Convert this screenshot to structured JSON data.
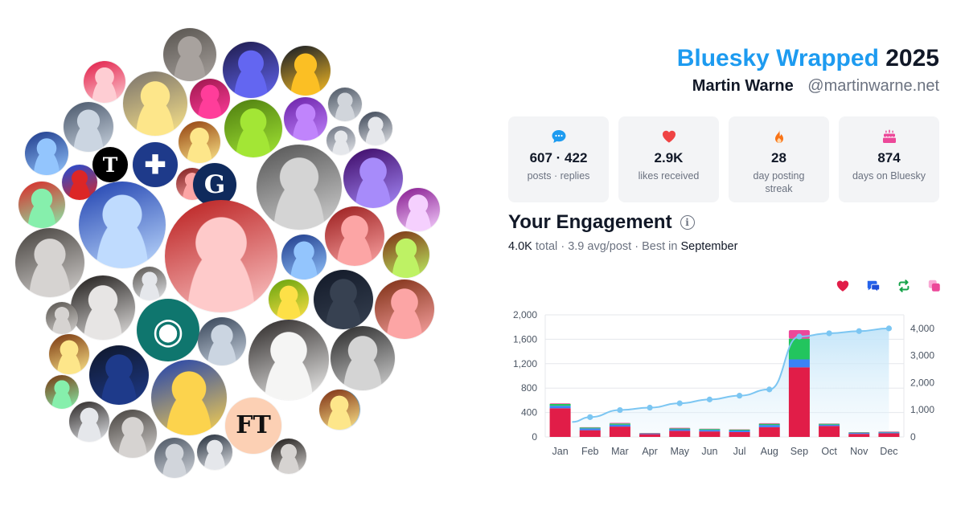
{
  "header": {
    "brand": "Bluesky Wrapped",
    "year": "2025",
    "name": "Martin Warne",
    "handle": "@martinwarne.net"
  },
  "stats": [
    {
      "icon": "chat-bubble-icon",
      "value": "607 · 422",
      "label": "posts · replies",
      "color": "#1d9bf0"
    },
    {
      "icon": "heart-icon",
      "value": "2.9K",
      "label": "likes received",
      "color": "#ef4444"
    },
    {
      "icon": "flame-icon",
      "value": "28",
      "label": "day posting streak",
      "color": "#f97316"
    },
    {
      "icon": "cake-icon",
      "value": "874",
      "label": "days on Bluesky",
      "color": "#ec4899"
    }
  ],
  "engagement": {
    "title": "Your Engagement",
    "total": "4.0K",
    "total_label": "total",
    "avg": "3.9 avg/post",
    "best_prefix": "Best in",
    "best_month": "September"
  },
  "legend": [
    {
      "icon": "heart-icon",
      "color": "#e11d48"
    },
    {
      "icon": "reply-icon",
      "color": "#2563eb"
    },
    {
      "icon": "repost-icon",
      "color": "#16a34a"
    },
    {
      "icon": "quote-icon",
      "color": "#ec4899"
    }
  ],
  "chart_data": {
    "type": "bar",
    "categories": [
      "Jan",
      "Feb",
      "Mar",
      "Apr",
      "May",
      "Jun",
      "Jul",
      "Aug",
      "Sep",
      "Oct",
      "Nov",
      "Dec"
    ],
    "series": [
      {
        "values": [
          470,
          110,
          170,
          45,
          100,
          90,
          80,
          160,
          1140,
          180,
          50,
          60
        ],
        "color": "#e11d48"
      },
      {
        "values": [
          40,
          30,
          30,
          10,
          25,
          25,
          25,
          35,
          130,
          20,
          15,
          15
        ],
        "color": "#3b82f6"
      },
      {
        "values": [
          30,
          15,
          20,
          5,
          15,
          15,
          15,
          20,
          340,
          15,
          8,
          8
        ],
        "color": "#22c55e"
      },
      {
        "values": [
          10,
          5,
          10,
          5,
          10,
          5,
          5,
          10,
          140,
          5,
          5,
          5
        ],
        "color": "#ec4899"
      }
    ],
    "cumulative": {
      "values": [
        550,
        730,
        990,
        1080,
        1240,
        1380,
        1520,
        1750,
        3700,
        3820,
        3900,
        4000
      ],
      "color": "#7cc6f2"
    },
    "y_ticks": [
      "0",
      "400",
      "800",
      "1,200",
      "1,600",
      "2,000"
    ],
    "y2_ticks": [
      "0",
      "1,000",
      "2,000",
      "3,000",
      "4,000"
    ],
    "ylim": [
      0,
      2000
    ],
    "y2lim": [
      0,
      4500
    ],
    "grid": true
  },
  "avatars": [
    {
      "kind": "photo",
      "colors": [
        "#a8a29e",
        "#57534e"
      ]
    },
    {
      "kind": "photo",
      "colors": [
        "#6366f1",
        "#1e1b4b"
      ]
    },
    {
      "kind": "photo",
      "colors": [
        "#fbbf24",
        "#111827"
      ]
    },
    {
      "kind": "photo",
      "colors": [
        "#fecdd3",
        "#e11d48"
      ]
    },
    {
      "kind": "photo",
      "colors": [
        "#fde68a",
        "#78716c"
      ]
    },
    {
      "kind": "photo",
      "colors": [
        "#ff3d9a",
        "#9d174d"
      ]
    },
    {
      "kind": "photo",
      "colors": [
        "#d1d5db",
        "#4b5563"
      ]
    },
    {
      "kind": "photo",
      "colors": [
        "#cbd5e1",
        "#475569"
      ]
    },
    {
      "kind": "photo",
      "colors": [
        "#a3e635",
        "#4d7c0f"
      ]
    },
    {
      "kind": "photo",
      "colors": [
        "#c084fc",
        "#6b21a8"
      ]
    },
    {
      "kind": "photo",
      "colors": [
        "#e5e7eb",
        "#6b7280"
      ]
    },
    {
      "kind": "photo",
      "colors": [
        "#e5e7eb",
        "#374151"
      ]
    },
    {
      "kind": "photo",
      "colors": [
        "#93c5fd",
        "#1e3a8a"
      ]
    },
    {
      "kind": "logo",
      "label": "T",
      "bg": "#000000",
      "fg": "#ffffff"
    },
    {
      "kind": "logo",
      "label": "✚",
      "bg": "#1e3a8a",
      "fg": "#ffffff"
    },
    {
      "kind": "photo",
      "colors": [
        "#fde68a",
        "#92400e"
      ]
    },
    {
      "kind": "photo",
      "colors": [
        "#fca5a5",
        "#7f1d1d"
      ]
    },
    {
      "kind": "logo",
      "label": "G",
      "bg": "#0f2a5c",
      "fg": "#ffffff"
    },
    {
      "kind": "photo",
      "colors": [
        "#d4d4d4",
        "#525252"
      ]
    },
    {
      "kind": "photo",
      "colors": [
        "#a78bfa",
        "#3b0764"
      ]
    },
    {
      "kind": "photo",
      "colors": [
        "#dc2626",
        "#1d4ed8"
      ]
    },
    {
      "kind": "photo",
      "colors": [
        "#86efac",
        "#dc2626"
      ]
    },
    {
      "kind": "photo",
      "colors": [
        "#bfdbfe",
        "#1e40af"
      ]
    },
    {
      "kind": "photo",
      "colors": [
        "#f5d0fe",
        "#86198f"
      ]
    },
    {
      "kind": "photo",
      "colors": [
        "#fecaca",
        "#b91c1c"
      ]
    },
    {
      "kind": "photo",
      "colors": [
        "#fca5a5",
        "#991b1b"
      ]
    },
    {
      "kind": "photo",
      "colors": [
        "#bef264",
        "#7c2d12"
      ]
    },
    {
      "kind": "photo",
      "colors": [
        "#93c5fd",
        "#1e3a8a"
      ]
    },
    {
      "kind": "photo",
      "colors": [
        "#d6d3d1",
        "#44403c"
      ]
    },
    {
      "kind": "photo",
      "colors": [
        "#e7e5e4",
        "#1c1917"
      ]
    },
    {
      "kind": "photo",
      "colors": [
        "#e5e7eb",
        "#57534e"
      ]
    },
    {
      "kind": "photo",
      "colors": [
        "#fde047",
        "#65a30d"
      ]
    },
    {
      "kind": "photo",
      "colors": [
        "#374151",
        "#111827"
      ]
    },
    {
      "kind": "photo",
      "colors": [
        "#d6d3d1",
        "#57534e"
      ]
    },
    {
      "kind": "photo",
      "colors": [
        "#fca5a5",
        "#7c2d12"
      ]
    },
    {
      "kind": "logo",
      "label": "◉",
      "bg": "#0f766e",
      "fg": "#ffffff"
    },
    {
      "kind": "photo",
      "colors": [
        "#cbd5e1",
        "#334155"
      ]
    },
    {
      "kind": "photo",
      "colors": [
        "#1e3a8a",
        "#0f172a"
      ]
    },
    {
      "kind": "photo",
      "colors": [
        "#f5f5f4",
        "#292524"
      ]
    },
    {
      "kind": "photo",
      "colors": [
        "#d4d4d4",
        "#262626"
      ]
    },
    {
      "kind": "photo",
      "colors": [
        "#fde68a",
        "#78350f"
      ]
    },
    {
      "kind": "photo",
      "colors": [
        "#fcd34d",
        "#1e40af"
      ]
    },
    {
      "kind": "photo",
      "colors": [
        "#e0f2fe",
        "#0c4a6e"
      ]
    },
    {
      "kind": "photo",
      "colors": [
        "#d6d3d1",
        "#44403c"
      ]
    },
    {
      "kind": "logo",
      "label": "FT",
      "bg": "#fcd0b4",
      "fg": "#111111"
    },
    {
      "kind": "photo",
      "colors": [
        "#fde68a",
        "#7c2d12"
      ]
    },
    {
      "kind": "photo",
      "colors": [
        "#e5e7eb",
        "#292524"
      ]
    },
    {
      "kind": "photo",
      "colors": [
        "#86efac",
        "#78350f"
      ]
    },
    {
      "kind": "photo",
      "colors": [
        "#e5e7eb",
        "#1f2937"
      ]
    },
    {
      "kind": "photo",
      "colors": [
        "#d1d5db",
        "#4b5563"
      ]
    },
    {
      "kind": "photo",
      "colors": [
        "#d6d3d1",
        "#1c1917"
      ]
    }
  ]
}
